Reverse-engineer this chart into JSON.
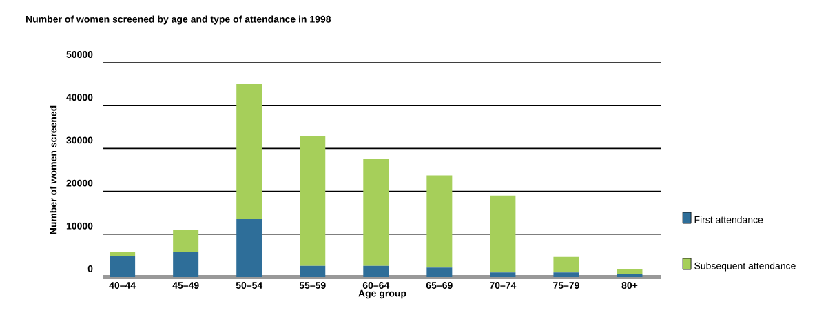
{
  "chart_data": {
    "type": "bar",
    "title": "Number of women screened by age and type of attendance in 1998",
    "xlabel": "Age group",
    "ylabel": "Number of women screened",
    "categories": [
      "40–44",
      "45–49",
      "50–54",
      "55–59",
      "60–64",
      "65–69",
      "70–74",
      "75–79",
      "80+"
    ],
    "stacked": true,
    "series": [
      {
        "name": "First attendance",
        "color": "#2e6e99",
        "values": [
          5000,
          5800,
          13500,
          2600,
          2600,
          2200,
          1100,
          1100,
          800
        ]
      },
      {
        "name": "Subsequent attendance",
        "color": "#a6cf5a",
        "values": [
          800,
          5300,
          31500,
          30200,
          24900,
          21500,
          17900,
          3600,
          1100
        ]
      }
    ],
    "ylim": [
      0,
      50000
    ],
    "yticks": [
      0,
      10000,
      20000,
      30000,
      40000,
      50000
    ],
    "grid": "y",
    "legend": "right"
  }
}
